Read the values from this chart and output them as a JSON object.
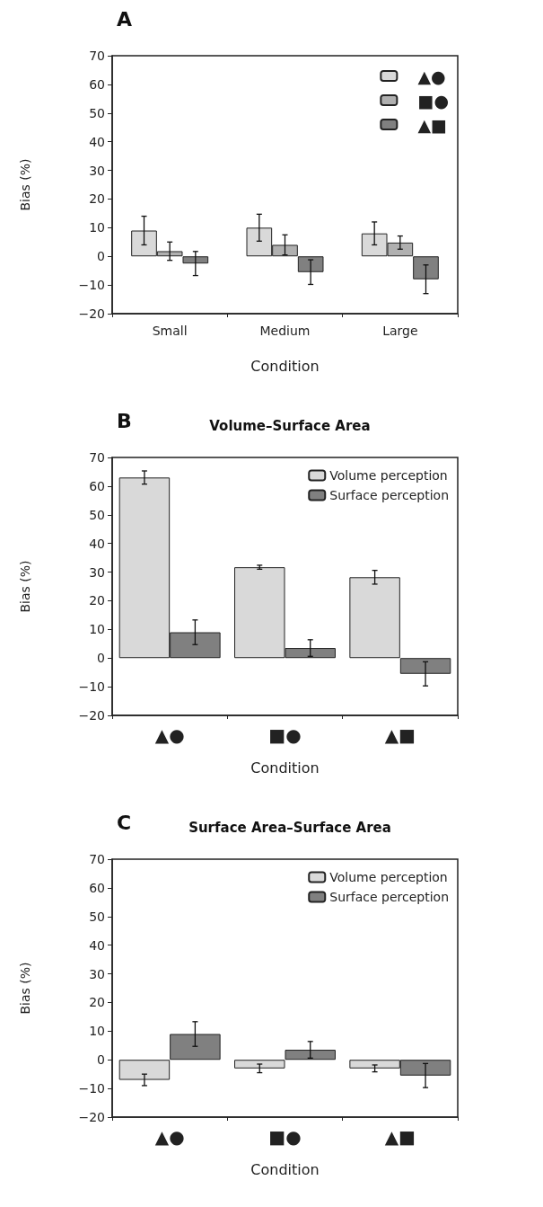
{
  "chart_data": [
    {
      "type": "bar",
      "annotations": [
        "A"
      ],
      "xlabel": "Condition",
      "ylabel": "Bias (%)",
      "categories": [
        "Small",
        "Medium",
        "Large"
      ],
      "series": [
        {
          "name": "▲●",
          "color": "#d9d9d9",
          "values": [
            9,
            10,
            8
          ],
          "errors": [
            5,
            4.7,
            4
          ]
        },
        {
          "name": "■●",
          "color": "#b0b0b0",
          "values": [
            1.8,
            4,
            4.8
          ],
          "errors": [
            3.2,
            3.5,
            2.3
          ]
        },
        {
          "name": "▲■",
          "color": "#808080",
          "values": [
            -2.5,
            -5.5,
            -8
          ],
          "errors": [
            4.2,
            4.3,
            5
          ]
        }
      ],
      "ylim": [
        -20,
        70
      ],
      "yticks": [
        -20,
        -10,
        0,
        10,
        20,
        30,
        40,
        50,
        60,
        70
      ],
      "grid": false,
      "legend": "top right"
    },
    {
      "type": "bar",
      "title": "Volume–Surface Area",
      "annotations": [
        "B"
      ],
      "xlabel": "Condition",
      "ylabel": "Bias (%)",
      "categories": [
        "▲●",
        "■●",
        "▲■"
      ],
      "series": [
        {
          "name": "Volume perception",
          "color": "#d9d9d9",
          "values": [
            63,
            31.7,
            28.2
          ],
          "errors": [
            2.3,
            0.7,
            2.4
          ]
        },
        {
          "name": "Surface perception",
          "color": "#808080",
          "values": [
            9,
            3.5,
            -5.5
          ],
          "errors": [
            4.3,
            2.9,
            4.2
          ]
        }
      ],
      "ylim": [
        -20,
        70
      ],
      "yticks": [
        -20,
        -10,
        0,
        10,
        20,
        30,
        40,
        50,
        60,
        70
      ],
      "grid": false,
      "legend": "top right"
    },
    {
      "type": "bar",
      "title": "Surface Area–Surface Area",
      "annotations": [
        "C"
      ],
      "xlabel": "Condition",
      "ylabel": "Bias (%)",
      "categories": [
        "▲●",
        "■●",
        "▲■"
      ],
      "series": [
        {
          "name": "Volume perception",
          "color": "#d9d9d9",
          "values": [
            -7,
            -3,
            -3
          ],
          "errors": [
            2,
            1.5,
            1.2
          ]
        },
        {
          "name": "Surface perception",
          "color": "#808080",
          "values": [
            9,
            3.5,
            -5.5
          ],
          "errors": [
            4.3,
            2.9,
            4.2
          ]
        }
      ],
      "ylim": [
        -20,
        70
      ],
      "yticks": [
        -20,
        -10,
        0,
        10,
        20,
        30,
        40,
        50,
        60,
        70
      ],
      "grid": false,
      "legend": "top right"
    }
  ]
}
